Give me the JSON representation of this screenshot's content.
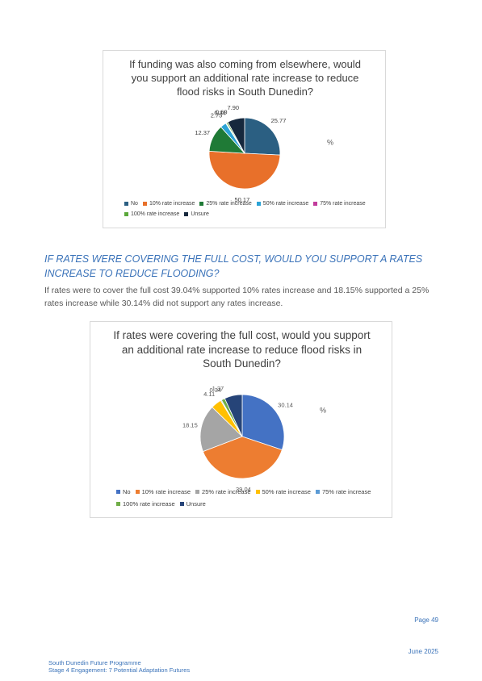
{
  "heading": "IF RATES WERE COVERING THE FULL COST, WOULD YOU SUPPORT A RATES INCREASE TO REDUCE FLOODING?",
  "paragraph": "If rates were to cover the full cost 39.04% supported 10% rates increase and 18.15% supported a 25% rates increase while 30.14% did not support any rates increase.",
  "page_number": "Page 49",
  "date": "June 2025",
  "footer": [
    "South Dunedin Future Programme",
    "Stage 4 Engagement: 7 Potential Adaptation Futures"
  ],
  "chart_data": [
    {
      "type": "pie",
      "title": "If funding was also coming from elsewhere, would you support an additional rate increase to reduce flood risks in South Dunedin?",
      "unit_label": "%",
      "categories": [
        "No",
        "10% rate increase",
        "25% rate increase",
        "50% rate increase",
        "75% rate increase",
        "100% rate increase",
        "Unsure"
      ],
      "values": [
        25.77,
        50.17,
        12.37,
        2.75,
        0.34,
        0.69,
        7.9
      ],
      "value_labels": [
        "25.77",
        "50.17",
        "12.37",
        "2.75",
        "0.34",
        "0.69",
        "7.90"
      ],
      "colors": [
        "#2b5f82",
        "#e8702a",
        "#1f7a36",
        "#2ba3d6",
        "#c23c9c",
        "#5aa83a",
        "#16283d"
      ]
    },
    {
      "type": "pie",
      "title": "If rates were covering the full cost, would you support an additional rate increase to reduce flood risks in South Dunedin?",
      "unit_label": "%",
      "categories": [
        "No",
        "10% rate increase",
        "25% rate increase",
        "50% rate increase",
        "75% rate increase",
        "100% rate increase",
        "Unsure"
      ],
      "values": [
        30.14,
        39.04,
        18.15,
        4.11,
        0.34,
        1.37,
        6.85
      ],
      "value_labels": [
        "30.14",
        "39.04",
        "18.15",
        "4.11",
        "0.34",
        "1.37",
        null
      ],
      "colors": [
        "#4472c4",
        "#ed7d31",
        "#a5a5a5",
        "#ffc000",
        "#5b9bd5",
        "#70ad47",
        "#264478"
      ]
    }
  ]
}
